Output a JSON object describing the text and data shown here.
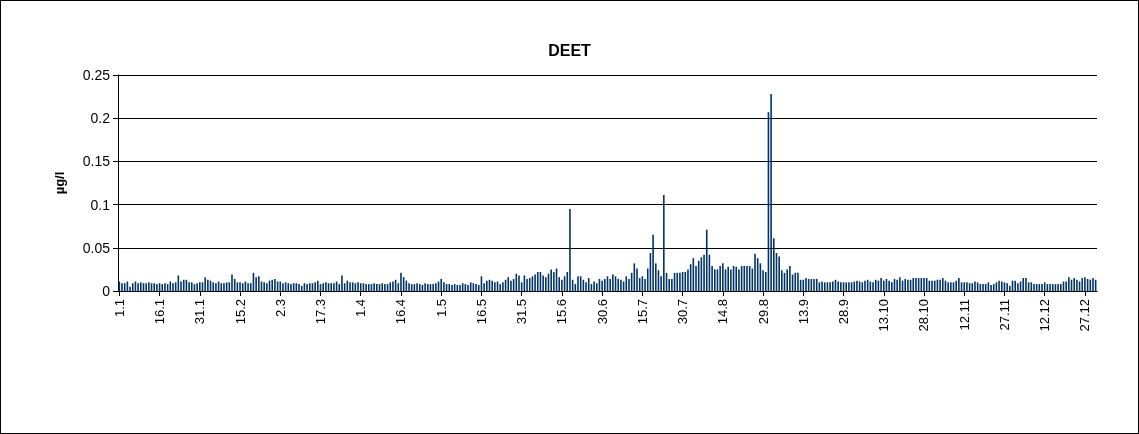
{
  "chart_data": {
    "type": "bar",
    "title": "DEET",
    "ylabel": "µg/l",
    "color": "#003366",
    "ylim": [
      0,
      0.25
    ],
    "yticks": [
      0,
      0.05,
      0.1,
      0.15,
      0.2,
      0.25
    ],
    "grid": "y",
    "categories": [
      "1.1",
      null,
      null,
      null,
      null,
      null,
      null,
      null,
      null,
      null,
      null,
      null,
      null,
      null,
      null,
      "16.1",
      null,
      null,
      null,
      null,
      null,
      null,
      null,
      null,
      null,
      null,
      null,
      null,
      null,
      null,
      "31.1",
      null,
      null,
      null,
      null,
      null,
      null,
      null,
      null,
      null,
      null,
      null,
      null,
      null,
      null,
      "15.2",
      null,
      null,
      null,
      null,
      null,
      null,
      null,
      null,
      null,
      null,
      null,
      null,
      null,
      null,
      "2.3",
      null,
      null,
      null,
      null,
      null,
      null,
      null,
      null,
      null,
      null,
      null,
      null,
      null,
      null,
      "17.3",
      null,
      null,
      null,
      null,
      null,
      null,
      null,
      null,
      null,
      null,
      null,
      null,
      null,
      null,
      "1.4",
      null,
      null,
      null,
      null,
      null,
      null,
      null,
      null,
      null,
      null,
      null,
      null,
      null,
      null,
      "16.4",
      null,
      null,
      null,
      null,
      null,
      null,
      null,
      null,
      null,
      null,
      null,
      null,
      null,
      null,
      "1.5",
      null,
      null,
      null,
      null,
      null,
      null,
      null,
      null,
      null,
      null,
      null,
      null,
      null,
      null,
      "16.5",
      null,
      null,
      null,
      null,
      null,
      null,
      null,
      null,
      null,
      null,
      null,
      null,
      null,
      null,
      "31.5",
      null,
      null,
      null,
      null,
      null,
      null,
      null,
      null,
      null,
      null,
      null,
      null,
      null,
      null,
      "15.6",
      null,
      null,
      null,
      null,
      null,
      null,
      null,
      null,
      null,
      null,
      null,
      null,
      null,
      null,
      "30.6",
      null,
      null,
      null,
      null,
      null,
      null,
      null,
      null,
      null,
      null,
      null,
      null,
      null,
      null,
      "15.7",
      null,
      null,
      null,
      null,
      null,
      null,
      null,
      null,
      null,
      null,
      null,
      null,
      null,
      null,
      "30.7",
      null,
      null,
      null,
      null,
      null,
      null,
      null,
      null,
      null,
      null,
      null,
      null,
      null,
      null,
      "14.8",
      null,
      null,
      null,
      null,
      null,
      null,
      null,
      null,
      null,
      null,
      null,
      null,
      null,
      null,
      "29.8",
      null,
      null,
      null,
      null,
      null,
      null,
      null,
      null,
      null,
      null,
      null,
      null,
      null,
      null,
      "13.9",
      null,
      null,
      null,
      null,
      null,
      null,
      null,
      null,
      null,
      null,
      null,
      null,
      null,
      null,
      "28.9",
      null,
      null,
      null,
      null,
      null,
      null,
      null,
      null,
      null,
      null,
      null,
      null,
      null,
      null,
      "13.10",
      null,
      null,
      null,
      null,
      null,
      null,
      null,
      null,
      null,
      null,
      null,
      null,
      null,
      null,
      "28.10",
      null,
      null,
      null,
      null,
      null,
      null,
      null,
      null,
      null,
      null,
      null,
      null,
      null,
      null,
      "12.11",
      null,
      null,
      null,
      null,
      null,
      null,
      null,
      null,
      null,
      null,
      null,
      null,
      null,
      null,
      "27.11",
      null,
      null,
      null,
      null,
      null,
      null,
      null,
      null,
      null,
      null,
      null,
      null,
      null,
      null,
      "12.12",
      null,
      null,
      null,
      null,
      null,
      null,
      null,
      null,
      null,
      null,
      null,
      null,
      null,
      null,
      "27.12",
      null,
      null,
      null,
      null
    ],
    "values": [
      0.011,
      0.009,
      0.009,
      0.011,
      0.005,
      0.009,
      0.011,
      0.009,
      0.01,
      0.009,
      0.009,
      0.01,
      0.009,
      0.009,
      0.008,
      0.009,
      0.008,
      0.009,
      0.008,
      0.011,
      0.009,
      0.01,
      0.018,
      0.011,
      0.013,
      0.013,
      0.01,
      0.01,
      0.008,
      0.009,
      0.01,
      0.01,
      0.016,
      0.013,
      0.012,
      0.01,
      0.009,
      0.011,
      0.009,
      0.009,
      0.01,
      0.01,
      0.019,
      0.014,
      0.01,
      0.01,
      0.009,
      0.011,
      0.009,
      0.009,
      0.021,
      0.016,
      0.017,
      0.011,
      0.01,
      0.009,
      0.012,
      0.013,
      0.014,
      0.011,
      0.011,
      0.009,
      0.01,
      0.009,
      0.008,
      0.009,
      0.009,
      0.008,
      0.006,
      0.009,
      0.008,
      0.009,
      0.009,
      0.01,
      0.012,
      0.008,
      0.009,
      0.01,
      0.009,
      0.009,
      0.009,
      0.011,
      0.008,
      0.018,
      0.009,
      0.012,
      0.01,
      0.01,
      0.009,
      0.01,
      0.009,
      0.009,
      0.008,
      0.008,
      0.008,
      0.009,
      0.008,
      0.008,
      0.009,
      0.008,
      0.008,
      0.01,
      0.011,
      0.013,
      0.009,
      0.021,
      0.016,
      0.012,
      0.009,
      0.008,
      0.008,
      0.009,
      0.008,
      0.007,
      0.009,
      0.008,
      0.008,
      0.008,
      0.009,
      0.011,
      0.014,
      0.01,
      0.008,
      0.008,
      0.007,
      0.008,
      0.007,
      0.007,
      0.009,
      0.008,
      0.007,
      0.01,
      0.009,
      0.008,
      0.007,
      0.017,
      0.009,
      0.012,
      0.013,
      0.012,
      0.01,
      0.011,
      0.008,
      0.01,
      0.013,
      0.016,
      0.012,
      0.014,
      0.02,
      0.018,
      0.01,
      0.018,
      0.014,
      0.015,
      0.017,
      0.019,
      0.022,
      0.022,
      0.018,
      0.016,
      0.02,
      0.025,
      0.022,
      0.026,
      0.016,
      0.013,
      0.017,
      0.022,
      0.095,
      0.013,
      0.008,
      0.017,
      0.017,
      0.013,
      0.01,
      0.015,
      0.008,
      0.011,
      0.009,
      0.014,
      0.012,
      0.014,
      0.017,
      0.014,
      0.019,
      0.017,
      0.014,
      0.013,
      0.011,
      0.017,
      0.014,
      0.021,
      0.032,
      0.026,
      0.015,
      0.017,
      0.014,
      0.026,
      0.044,
      0.065,
      0.032,
      0.024,
      0.017,
      0.111,
      0.021,
      0.014,
      0.014,
      0.021,
      0.021,
      0.021,
      0.022,
      0.022,
      0.025,
      0.031,
      0.038,
      0.029,
      0.035,
      0.039,
      0.042,
      0.071,
      0.042,
      0.029,
      0.025,
      0.025,
      0.029,
      0.032,
      0.025,
      0.028,
      0.025,
      0.029,
      0.028,
      0.025,
      0.029,
      0.029,
      0.029,
      0.029,
      0.026,
      0.043,
      0.038,
      0.032,
      0.024,
      0.022,
      0.207,
      0.228,
      0.061,
      0.044,
      0.04,
      0.024,
      0.021,
      0.025,
      0.029,
      0.019,
      0.021,
      0.021,
      0.013,
      0.013,
      0.015,
      0.014,
      0.014,
      0.014,
      0.014,
      0.01,
      0.011,
      0.01,
      0.01,
      0.01,
      0.011,
      0.013,
      0.011,
      0.01,
      0.01,
      0.01,
      0.01,
      0.01,
      0.011,
      0.012,
      0.011,
      0.01,
      0.012,
      0.013,
      0.011,
      0.01,
      0.013,
      0.012,
      0.015,
      0.012,
      0.014,
      0.012,
      0.01,
      0.014,
      0.013,
      0.016,
      0.012,
      0.014,
      0.013,
      0.013,
      0.015,
      0.015,
      0.015,
      0.015,
      0.015,
      0.015,
      0.012,
      0.012,
      0.012,
      0.013,
      0.013,
      0.015,
      0.012,
      0.01,
      0.01,
      0.01,
      0.012,
      0.015,
      0.01,
      0.01,
      0.01,
      0.009,
      0.009,
      0.011,
      0.01,
      0.008,
      0.008,
      0.008,
      0.01,
      0.007,
      0.008,
      0.01,
      0.012,
      0.011,
      0.01,
      0.009,
      0.006,
      0.012,
      0.012,
      0.009,
      0.011,
      0.015,
      0.015,
      0.01,
      0.01,
      0.008,
      0.008,
      0.008,
      0.008,
      0.01,
      0.008,
      0.008,
      0.008,
      0.008,
      0.008,
      0.008,
      0.011,
      0.011,
      0.016,
      0.013,
      0.015,
      0.013,
      0.011,
      0.015,
      0.016,
      0.014,
      0.013,
      0.015,
      0.013
    ]
  }
}
